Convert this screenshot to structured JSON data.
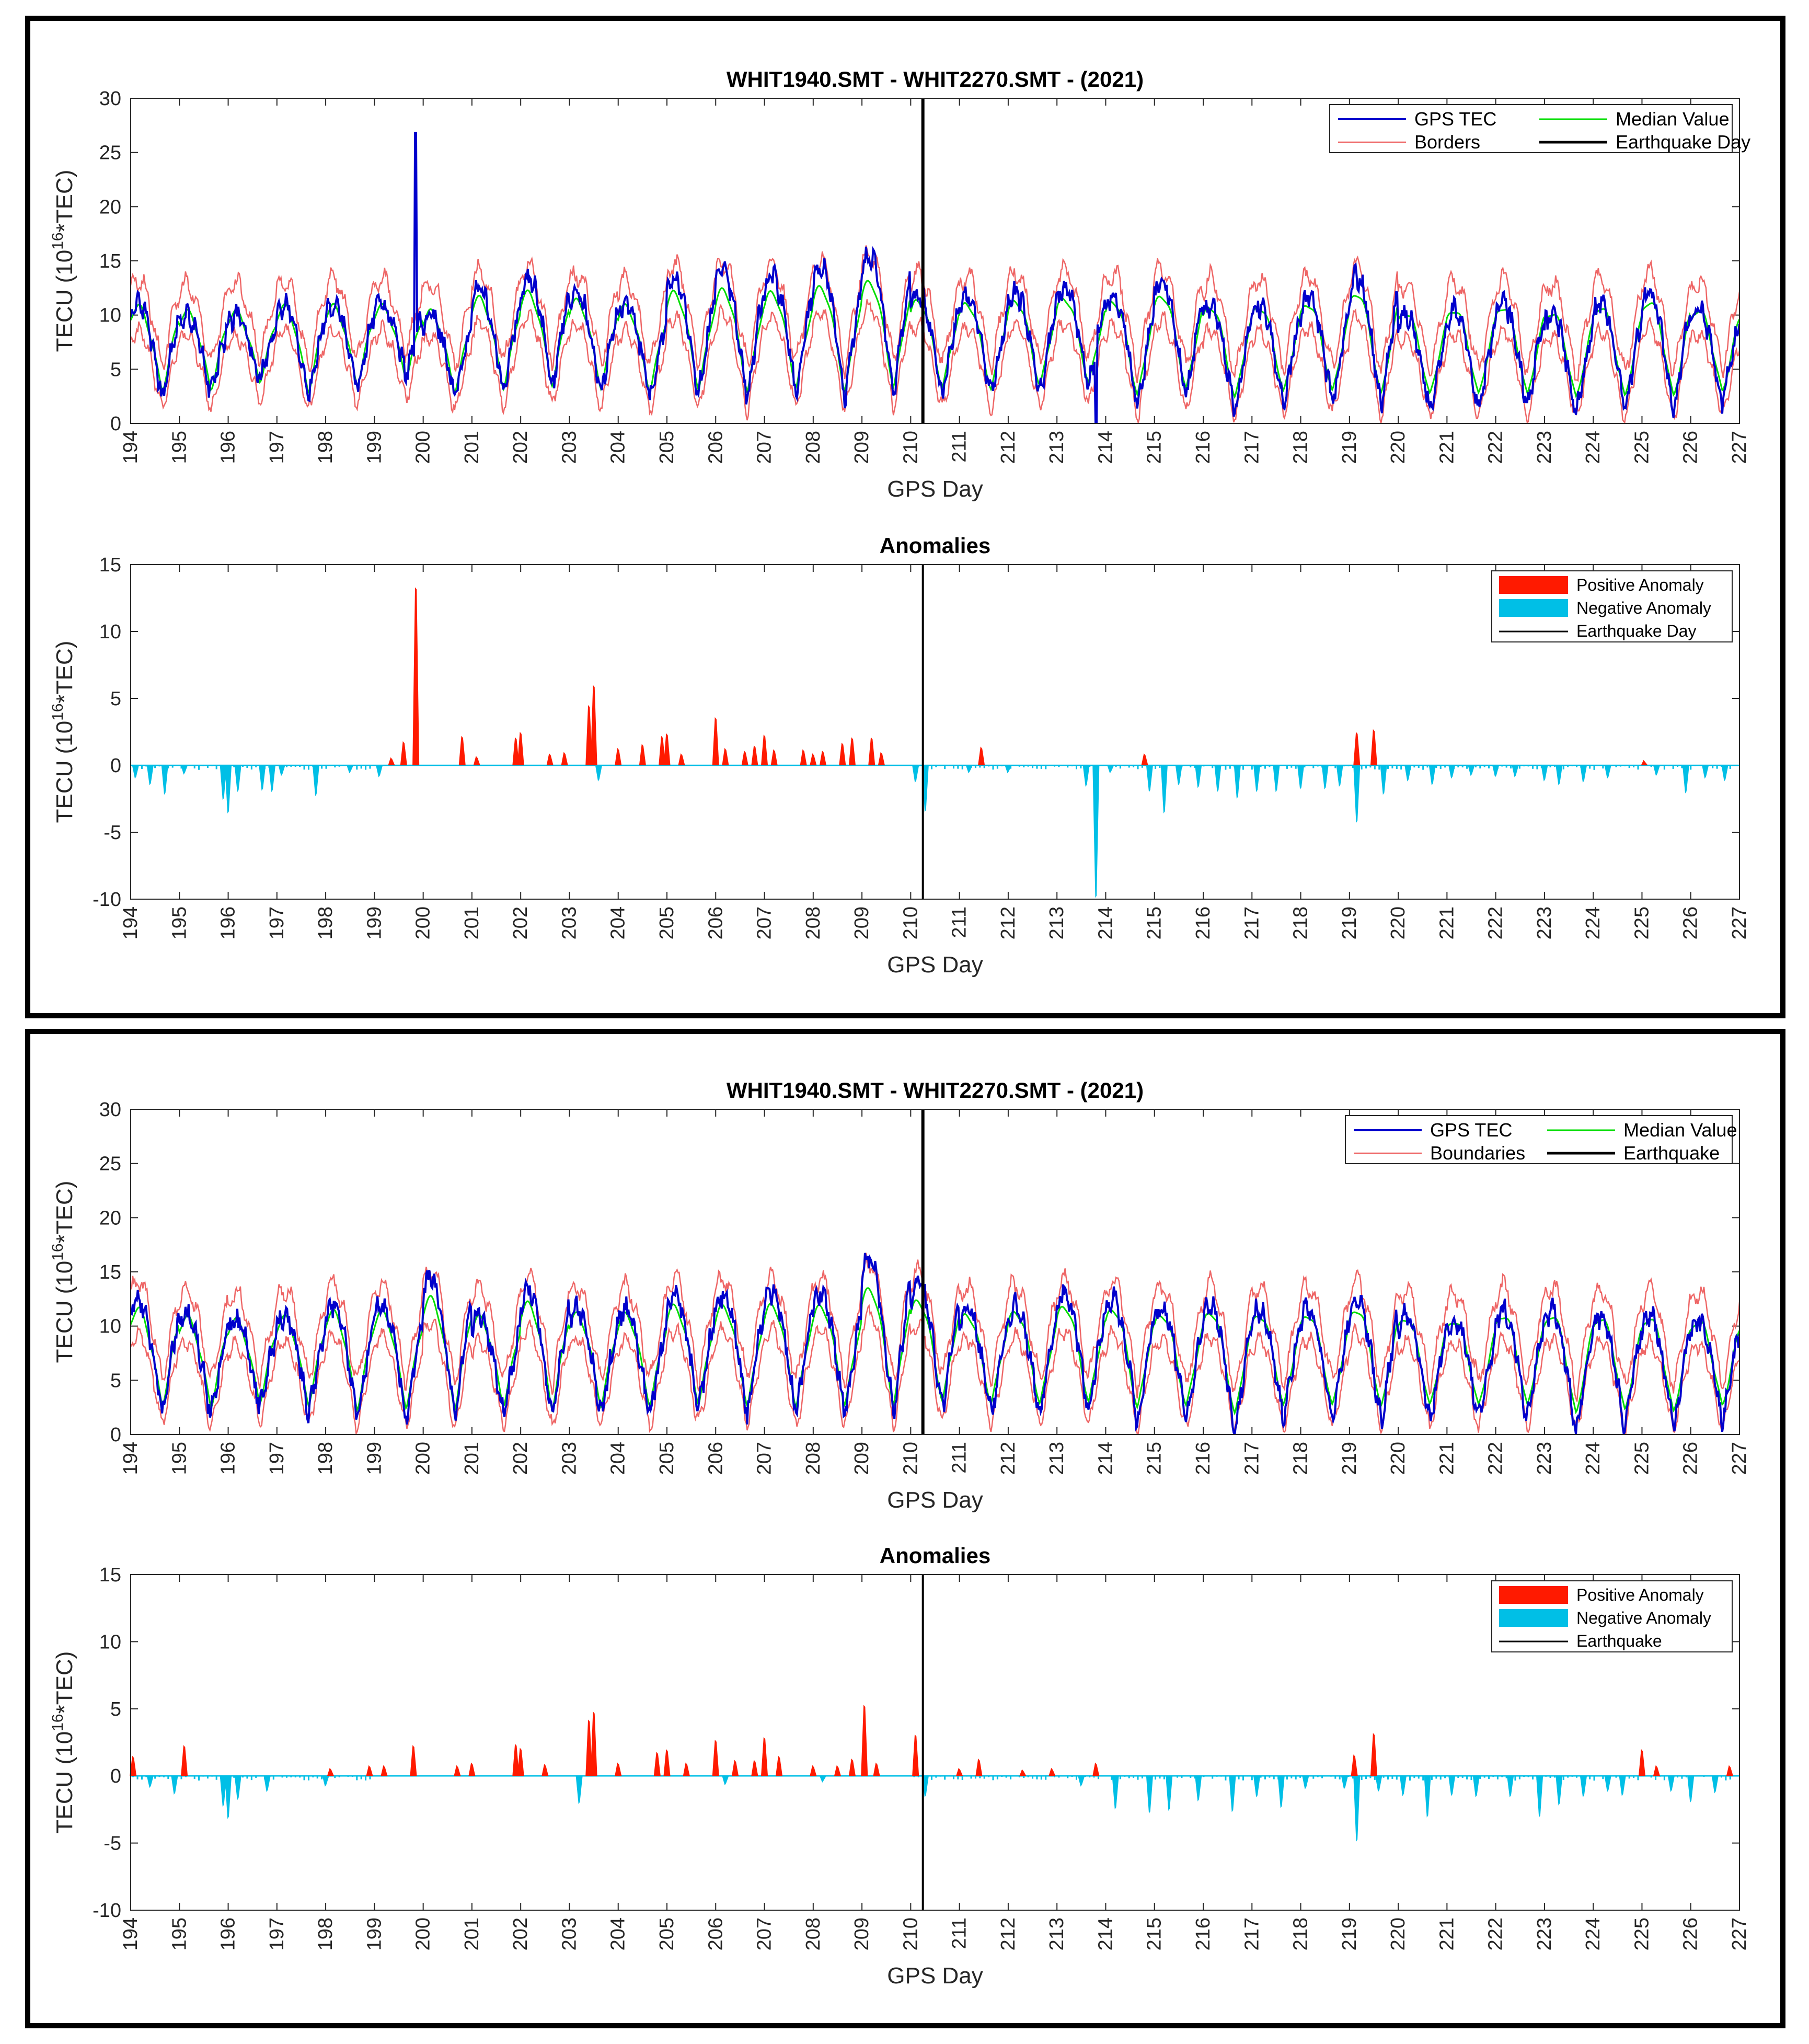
{
  "figures": [
    {
      "tec": {
        "title": "WHIT1940.SMT - WHIT2270.SMT - (2021)",
        "xlabel": "GPS Day",
        "ylabel": "TECU (10",
        "ylabel_sup": "16",
        "ylabel_tail": "*TEC)",
        "legend": {
          "gps": "GPS TEC",
          "median": "Median Value",
          "borders": "Borders",
          "eq": "Earthquake Day"
        }
      },
      "anom": {
        "title": "Anomalies",
        "xlabel": "GPS Day",
        "ylabel": "TECU (10",
        "ylabel_sup": "16",
        "ylabel_tail": "*TEC)",
        "legend": {
          "pos": "Positive Anomaly",
          "neg": "Negative Anomaly",
          "eq": "Earthquake Day"
        }
      }
    },
    {
      "tec": {
        "title": "WHIT1940.SMT - WHIT2270.SMT - (2021)",
        "xlabel": "GPS Day",
        "ylabel": "TECU (10",
        "ylabel_sup": "16",
        "ylabel_tail": "*TEC)",
        "legend": {
          "gps": "GPS TEC",
          "median": "Median Value",
          "borders": "Boundaries",
          "eq": "Earthquake"
        }
      },
      "anom": {
        "title": "Anomalies",
        "xlabel": "GPS Day",
        "ylabel": "TECU (10",
        "ylabel_sup": "16",
        "ylabel_tail": "*TEC)",
        "legend": {
          "pos": "Positive Anomaly",
          "neg": "Negative Anomaly",
          "eq": "Earthquake"
        }
      }
    }
  ],
  "colors": {
    "gps": "#0000cc",
    "median": "#00dd00",
    "borders": "#ee6666",
    "eq": "#000000",
    "pos": "#ff1a00",
    "neg": "#00bfe6",
    "axis": "#262626"
  },
  "chart_data": [
    {
      "type": "line",
      "panel": 1,
      "subplot": "tec",
      "title": "WHIT1940.SMT - WHIT2270.SMT - (2021)",
      "xlabel": "GPS Day",
      "ylabel": "TECU (10^16*TEC)",
      "xlim": [
        194,
        227
      ],
      "ylim": [
        0,
        30
      ],
      "xticks": [
        194,
        195,
        196,
        197,
        198,
        199,
        200,
        201,
        202,
        203,
        204,
        205,
        206,
        207,
        208,
        209,
        210,
        211,
        212,
        213,
        214,
        215,
        216,
        217,
        218,
        219,
        220,
        221,
        222,
        223,
        224,
        225,
        226,
        227
      ],
      "yticks": [
        0,
        5,
        10,
        15,
        20,
        25,
        30
      ],
      "earthquake_day": 210.25,
      "series_model": {
        "gps_daily_max": [
          11,
          10,
          10,
          11,
          11,
          11,
          10,
          12.5,
          13.5,
          12,
          11,
          13.5,
          14,
          13.5,
          14.5,
          15.5,
          12,
          11.5,
          12,
          12.5,
          12,
          13,
          11,
          11,
          11.5,
          13.5,
          10,
          10.5,
          11,
          10,
          11,
          12,
          10.5
        ],
        "gps_daily_min": [
          2.5,
          2.8,
          4,
          2.5,
          3.5,
          4.5,
          2.5,
          3,
          3.5,
          3,
          2.5,
          2.8,
          2.5,
          3,
          2.5,
          3,
          2.8,
          2.5,
          3,
          3.5,
          1.5,
          2.5,
          1,
          2,
          2,
          1.5,
          1.5,
          1.5,
          1.5,
          1,
          1.2,
          1.2,
          2
        ]
      },
      "spikes": [
        {
          "day": 199.85,
          "value": 26.8
        },
        {
          "day": 213.8,
          "value": 0
        }
      ],
      "series": [
        {
          "name": "GPS TEC"
        },
        {
          "name": "Median Value"
        },
        {
          "name": "Borders"
        }
      ],
      "legend": "top-right"
    },
    {
      "type": "area",
      "panel": 1,
      "subplot": "anom",
      "title": "Anomalies",
      "xlabel": "GPS Day",
      "ylabel": "TECU (10^16*TEC)",
      "xlim": [
        194,
        227
      ],
      "ylim": [
        -10,
        15
      ],
      "yticks": [
        -10,
        -5,
        0,
        5,
        10,
        15
      ],
      "earthquake_day": 210.25,
      "positive_peaks": [
        [
          199.35,
          0.6
        ],
        [
          199.6,
          1.8
        ],
        [
          199.85,
          13.3
        ],
        [
          200.8,
          2.2
        ],
        [
          201.1,
          0.7
        ],
        [
          201.9,
          2.1
        ],
        [
          202.0,
          2.5
        ],
        [
          202.6,
          0.9
        ],
        [
          202.9,
          1.0
        ],
        [
          203.4,
          4.5
        ],
        [
          203.5,
          6.0
        ],
        [
          204.0,
          1.3
        ],
        [
          204.5,
          1.6
        ],
        [
          204.9,
          2.2
        ],
        [
          205.0,
          2.4
        ],
        [
          205.3,
          0.9
        ],
        [
          206.0,
          3.6
        ],
        [
          206.2,
          1.3
        ],
        [
          206.6,
          1.1
        ],
        [
          206.8,
          1.5
        ],
        [
          207.0,
          2.3
        ],
        [
          207.2,
          1.2
        ],
        [
          207.8,
          1.2
        ],
        [
          208.0,
          0.9
        ],
        [
          208.2,
          1.1
        ],
        [
          208.6,
          1.7
        ],
        [
          208.8,
          2.1
        ],
        [
          209.2,
          2.1
        ],
        [
          209.4,
          1.0
        ],
        [
          211.45,
          1.4
        ],
        [
          214.8,
          0.9
        ],
        [
          219.15,
          2.5
        ],
        [
          219.5,
          2.7
        ],
        [
          225.05,
          0.4
        ]
      ],
      "negative_peaks": [
        [
          194.1,
          -1.0
        ],
        [
          194.4,
          -1.5
        ],
        [
          194.7,
          -2.2
        ],
        [
          195.1,
          -0.7
        ],
        [
          195.9,
          -2.6
        ],
        [
          196.0,
          -3.6
        ],
        [
          196.2,
          -2.0
        ],
        [
          196.7,
          -1.9
        ],
        [
          196.9,
          -2.0
        ],
        [
          197.1,
          -0.8
        ],
        [
          197.8,
          -2.3
        ],
        [
          198.5,
          -0.6
        ],
        [
          199.1,
          -0.9
        ],
        [
          203.6,
          -1.2
        ],
        [
          210.1,
          -1.3
        ],
        [
          210.3,
          -3.5
        ],
        [
          211.2,
          -0.6
        ],
        [
          212.0,
          -0.6
        ],
        [
          213.6,
          -1.6
        ],
        [
          213.8,
          -9.9
        ],
        [
          214.1,
          -0.6
        ],
        [
          214.9,
          -2.0
        ],
        [
          215.2,
          -3.6
        ],
        [
          215.5,
          -1.5
        ],
        [
          215.9,
          -1.7
        ],
        [
          216.3,
          -2.0
        ],
        [
          216.7,
          -2.5
        ],
        [
          217.1,
          -2.0
        ],
        [
          217.5,
          -2.0
        ],
        [
          218.0,
          -1.8
        ],
        [
          218.5,
          -1.8
        ],
        [
          218.8,
          -1.6
        ],
        [
          219.15,
          -4.3
        ],
        [
          219.7,
          -2.2
        ],
        [
          220.2,
          -1.2
        ],
        [
          220.7,
          -1.5
        ],
        [
          221.1,
          -1.0
        ],
        [
          221.5,
          -0.8
        ],
        [
          222.0,
          -0.9
        ],
        [
          222.4,
          -0.9
        ],
        [
          223.0,
          -1.2
        ],
        [
          223.3,
          -1.5
        ],
        [
          223.8,
          -1.3
        ],
        [
          224.3,
          -1.0
        ],
        [
          225.3,
          -0.8
        ],
        [
          225.9,
          -2.1
        ],
        [
          226.3,
          -1.0
        ],
        [
          226.7,
          -1.2
        ]
      ],
      "legend": "top-right"
    },
    {
      "type": "line",
      "panel": 2,
      "subplot": "tec",
      "title": "WHIT1940.SMT - WHIT2270.SMT - (2021)",
      "xlabel": "GPS Day",
      "ylabel": "TECU (10^16*TEC)",
      "xlim": [
        194,
        227
      ],
      "ylim": [
        0,
        30
      ],
      "earthquake_day": 210.25,
      "series_model": {
        "gps_daily_max": [
          12.5,
          11,
          10.5,
          11,
          12,
          12,
          14.5,
          11,
          13.5,
          11.5,
          11.5,
          13,
          13,
          13.2,
          13,
          16.2,
          14,
          11.5,
          12,
          13,
          12.5,
          11.5,
          12,
          11.5,
          11.5,
          12.5,
          11,
          10.5,
          11.5,
          11.5,
          11,
          11,
          10.5
        ],
        "gps_daily_min": [
          2,
          1.8,
          2.5,
          2.2,
          1.5,
          1.8,
          1.5,
          2,
          1.5,
          2,
          2,
          2.2,
          2,
          1.8,
          2,
          2,
          2.5,
          2,
          2,
          2.2,
          1.2,
          1.5,
          0.2,
          1.5,
          1.5,
          1.2,
          1.5,
          1.5,
          1.5,
          0.2,
          0.8,
          0.5,
          1.5
        ]
      },
      "spikes": [
        {
          "day": 209.1,
          "value": 16.2
        }
      ],
      "series": [
        {
          "name": "GPS TEC"
        },
        {
          "name": "Median Value"
        },
        {
          "name": "Boundaries"
        }
      ],
      "legend": "top-right"
    },
    {
      "type": "area",
      "panel": 2,
      "subplot": "anom",
      "title": "Anomalies",
      "xlabel": "GPS Day",
      "ylabel": "TECU (10^16*TEC)",
      "xlim": [
        194,
        227
      ],
      "ylim": [
        -10,
        15
      ],
      "yticks": [
        -10,
        -5,
        0,
        5,
        10,
        15
      ],
      "earthquake_day": 210.25,
      "positive_peaks": [
        [
          194.05,
          1.5
        ],
        [
          195.1,
          2.3
        ],
        [
          198.1,
          0.6
        ],
        [
          198.9,
          0.8
        ],
        [
          199.2,
          0.8
        ],
        [
          199.8,
          2.3
        ],
        [
          200.7,
          0.8
        ],
        [
          201.0,
          1.0
        ],
        [
          201.9,
          2.4
        ],
        [
          202.0,
          2.1
        ],
        [
          202.5,
          0.9
        ],
        [
          203.4,
          4.2
        ],
        [
          203.5,
          4.8
        ],
        [
          204.0,
          1.0
        ],
        [
          204.8,
          1.8
        ],
        [
          205.0,
          2.0
        ],
        [
          205.4,
          1.0
        ],
        [
          206.0,
          2.7
        ],
        [
          206.4,
          1.2
        ],
        [
          206.8,
          1.2
        ],
        [
          207.0,
          2.9
        ],
        [
          207.3,
          1.5
        ],
        [
          208.0,
          0.8
        ],
        [
          208.5,
          0.8
        ],
        [
          208.8,
          1.3
        ],
        [
          209.05,
          5.3
        ],
        [
          209.3,
          1.0
        ],
        [
          210.1,
          3.1
        ],
        [
          211.0,
          0.6
        ],
        [
          211.4,
          1.3
        ],
        [
          212.3,
          0.5
        ],
        [
          212.9,
          0.6
        ],
        [
          213.8,
          1.0
        ],
        [
          219.1,
          1.6
        ],
        [
          219.5,
          3.2
        ],
        [
          225.0,
          2.0
        ],
        [
          225.3,
          0.8
        ],
        [
          226.8,
          0.8
        ]
      ],
      "negative_peaks": [
        [
          194.4,
          -0.9
        ],
        [
          194.9,
          -1.4
        ],
        [
          195.9,
          -2.3
        ],
        [
          196.0,
          -3.2
        ],
        [
          196.2,
          -1.8
        ],
        [
          196.8,
          -1.2
        ],
        [
          198.0,
          -0.8
        ],
        [
          203.2,
          -2.1
        ],
        [
          206.2,
          -0.7
        ],
        [
          208.2,
          -0.5
        ],
        [
          210.3,
          -1.6
        ],
        [
          213.5,
          -0.8
        ],
        [
          214.2,
          -2.5
        ],
        [
          214.9,
          -2.8
        ],
        [
          215.3,
          -2.6
        ],
        [
          215.9,
          -1.9
        ],
        [
          216.6,
          -2.7
        ],
        [
          217.1,
          -1.6
        ],
        [
          217.6,
          -2.4
        ],
        [
          218.1,
          -1.0
        ],
        [
          218.9,
          -1.0
        ],
        [
          219.15,
          -4.9
        ],
        [
          219.6,
          -1.2
        ],
        [
          220.1,
          -1.5
        ],
        [
          220.6,
          -3.1
        ],
        [
          221.1,
          -1.5
        ],
        [
          221.6,
          -1.6
        ],
        [
          222.3,
          -1.6
        ],
        [
          222.9,
          -3.1
        ],
        [
          223.3,
          -2.2
        ],
        [
          223.8,
          -1.6
        ],
        [
          224.3,
          -1.2
        ],
        [
          224.6,
          -1.5
        ],
        [
          225.6,
          -1.2
        ],
        [
          226.0,
          -2.0
        ],
        [
          226.5,
          -1.3
        ]
      ],
      "legend": "top-right"
    }
  ]
}
